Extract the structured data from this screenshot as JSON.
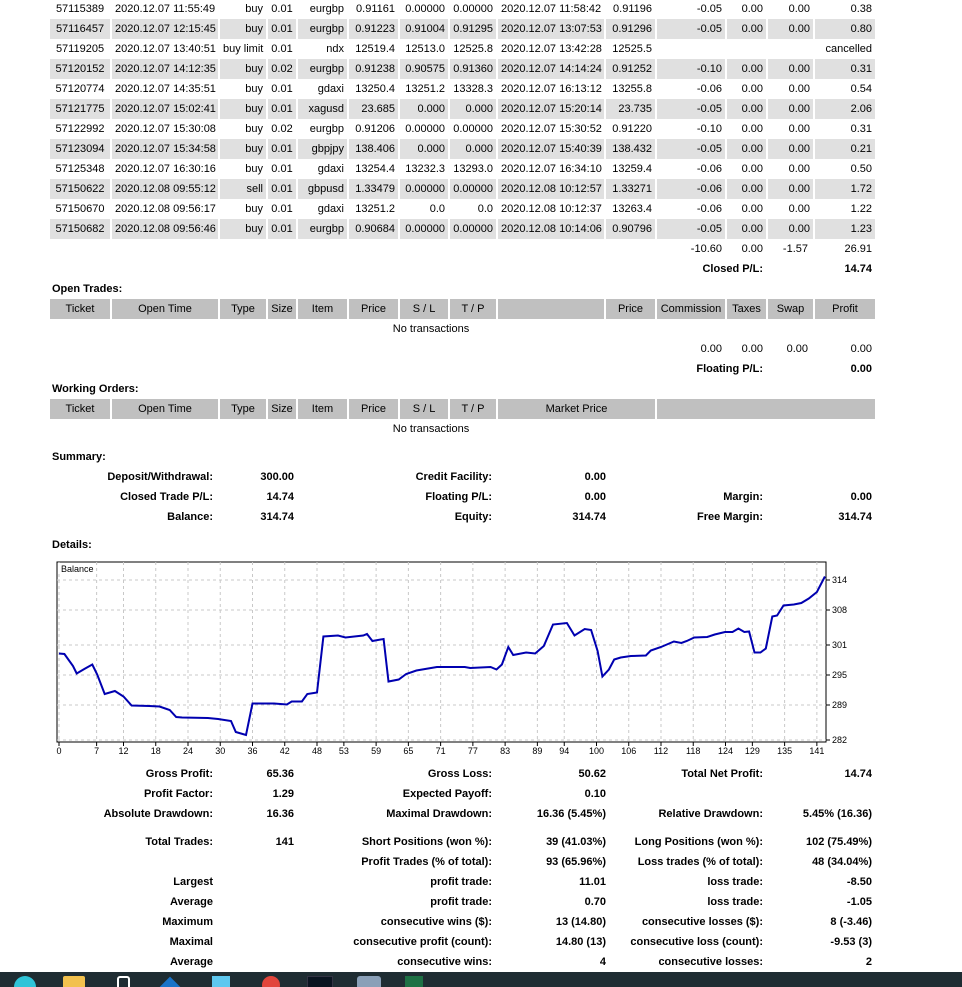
{
  "closed_trades": {
    "rows": [
      [
        "57115389",
        "2020.12.07 11:55:49",
        "buy",
        "0.01",
        "eurgbp",
        "0.91161",
        "0.00000",
        "0.00000",
        "2020.12.07 11:58:42",
        "0.91196",
        "-0.05",
        "0.00",
        "0.00",
        "0.38"
      ],
      [
        "57116457",
        "2020.12.07 12:15:45",
        "buy",
        "0.01",
        "eurgbp",
        "0.91223",
        "0.91004",
        "0.91295",
        "2020.12.07 13:07:53",
        "0.91296",
        "-0.05",
        "0.00",
        "0.00",
        "0.80"
      ],
      [
        "57119205",
        "2020.12.07 13:40:51",
        "buy limit",
        "0.01",
        "ndx",
        "12519.4",
        "12513.0",
        "12525.8",
        "2020.12.07 13:42:28",
        "12525.5",
        "",
        "",
        "",
        "cancelled"
      ],
      [
        "57120152",
        "2020.12.07 14:12:35",
        "buy",
        "0.02",
        "eurgbp",
        "0.91238",
        "0.90575",
        "0.91360",
        "2020.12.07 14:14:24",
        "0.91252",
        "-0.10",
        "0.00",
        "0.00",
        "0.31"
      ],
      [
        "57120774",
        "2020.12.07 14:35:51",
        "buy",
        "0.01",
        "gdaxi",
        "13250.4",
        "13251.2",
        "13328.3",
        "2020.12.07 16:13:12",
        "13255.8",
        "-0.06",
        "0.00",
        "0.00",
        "0.54"
      ],
      [
        "57121775",
        "2020.12.07 15:02:41",
        "buy",
        "0.01",
        "xagusd",
        "23.685",
        "0.000",
        "0.000",
        "2020.12.07 15:20:14",
        "23.735",
        "-0.05",
        "0.00",
        "0.00",
        "2.06"
      ],
      [
        "57122992",
        "2020.12.07 15:30:08",
        "buy",
        "0.02",
        "eurgbp",
        "0.91206",
        "0.00000",
        "0.00000",
        "2020.12.07 15:30:52",
        "0.91220",
        "-0.10",
        "0.00",
        "0.00",
        "0.31"
      ],
      [
        "57123094",
        "2020.12.07 15:34:58",
        "buy",
        "0.01",
        "gbpjpy",
        "138.406",
        "0.000",
        "0.000",
        "2020.12.07 15:40:39",
        "138.432",
        "-0.05",
        "0.00",
        "0.00",
        "0.21"
      ],
      [
        "57125348",
        "2020.12.07 16:30:16",
        "buy",
        "0.01",
        "gdaxi",
        "13254.4",
        "13232.3",
        "13293.0",
        "2020.12.07 16:34:10",
        "13259.4",
        "-0.06",
        "0.00",
        "0.00",
        "0.50"
      ],
      [
        "57150622",
        "2020.12.08 09:55:12",
        "sell",
        "0.01",
        "gbpusd",
        "1.33479",
        "0.00000",
        "0.00000",
        "2020.12.08 10:12:57",
        "1.33271",
        "-0.06",
        "0.00",
        "0.00",
        "1.72"
      ],
      [
        "57150670",
        "2020.12.08 09:56:17",
        "buy",
        "0.01",
        "gdaxi",
        "13251.2",
        "0.0",
        "0.0",
        "2020.12.08 10:12:37",
        "13263.4",
        "-0.06",
        "0.00",
        "0.00",
        "1.22"
      ],
      [
        "57150682",
        "2020.12.08 09:56:46",
        "buy",
        "0.01",
        "eurgbp",
        "0.90684",
        "0.00000",
        "0.00000",
        "2020.12.08 10:14:06",
        "0.90796",
        "-0.05",
        "0.00",
        "0.00",
        "1.23"
      ]
    ],
    "totals": {
      "commission": "-10.60",
      "taxes": "0.00",
      "swap": "-1.57",
      "profit": "26.91"
    },
    "closed_pl_label": "Closed P/L:",
    "closed_pl_value": "14.74"
  },
  "open_trades": {
    "title": "Open Trades:",
    "headers": [
      "Ticket",
      "Open Time",
      "Type",
      "Size",
      "Item",
      "Price",
      "S / L",
      "T / P",
      "",
      "Price",
      "Commission",
      "Taxes",
      "Swap",
      "Profit"
    ],
    "empty_text": "No transactions",
    "totals": {
      "commission": "0.00",
      "taxes": "0.00",
      "swap": "0.00",
      "profit": "0.00"
    },
    "floating_pl_label": "Floating P/L:",
    "floating_pl_value": "0.00"
  },
  "working_orders": {
    "title": "Working Orders:",
    "headers": [
      "Ticket",
      "Open Time",
      "Type",
      "Size",
      "Item",
      "Price",
      "S / L",
      "T / P",
      "Market Price",
      ""
    ],
    "empty_text": "No transactions"
  },
  "summary": {
    "title": "Summary:",
    "rows": [
      [
        [
          "Deposit/Withdrawal:",
          "300.00"
        ],
        [
          "Credit Facility:",
          "0.00"
        ],
        [
          "",
          ""
        ]
      ],
      [
        [
          "Closed Trade P/L:",
          "14.74"
        ],
        [
          "Floating P/L:",
          "0.00"
        ],
        [
          "Margin:",
          "0.00"
        ]
      ],
      [
        [
          "Balance:",
          "314.74"
        ],
        [
          "Equity:",
          "314.74"
        ],
        [
          "Free Margin:",
          "314.74"
        ]
      ]
    ]
  },
  "details": {
    "title": "Details:",
    "stats": [
      [
        [
          "Gross Profit:",
          "65.36"
        ],
        [
          "Gross Loss:",
          "50.62"
        ],
        [
          "Total Net Profit:",
          "14.74"
        ]
      ],
      [
        [
          "Profit Factor:",
          "1.29"
        ],
        [
          "Expected Payoff:",
          "0.10"
        ],
        [
          "",
          ""
        ]
      ],
      [
        [
          "Absolute Drawdown:",
          "16.36"
        ],
        [
          "Maximal Drawdown:",
          "16.36 (5.45%)"
        ],
        [
          "Relative Drawdown:",
          "5.45% (16.36)"
        ]
      ],
      [
        [
          "Total Trades:",
          "141"
        ],
        [
          "Short Positions (won %):",
          "39 (41.03%)"
        ],
        [
          "Long Positions (won %):",
          "102 (75.49%)"
        ]
      ],
      [
        [
          "",
          ""
        ],
        [
          "Profit Trades (% of total):",
          "93 (65.96%)"
        ],
        [
          "Loss trades (% of total):",
          "48 (34.04%)"
        ]
      ],
      [
        [
          "Largest",
          ""
        ],
        [
          "profit trade:",
          "11.01"
        ],
        [
          "loss trade:",
          "-8.50"
        ]
      ],
      [
        [
          "Average",
          ""
        ],
        [
          "profit trade:",
          "0.70"
        ],
        [
          "loss trade:",
          "-1.05"
        ]
      ],
      [
        [
          "Maximum",
          ""
        ],
        [
          "consecutive wins ($):",
          "13 (14.80)"
        ],
        [
          "consecutive losses ($):",
          "8 (-3.46)"
        ]
      ],
      [
        [
          "Maximal",
          ""
        ],
        [
          "consecutive profit (count):",
          "14.80 (13)"
        ],
        [
          "consecutive loss (count):",
          "-9.53 (3)"
        ]
      ],
      [
        [
          "Average",
          ""
        ],
        [
          "consecutive wins:",
          "4"
        ],
        [
          "consecutive losses:",
          "2"
        ]
      ]
    ]
  },
  "chart_data": {
    "type": "line",
    "title": "Balance",
    "line_color": "#0000b0",
    "grid": true,
    "xlim": [
      0,
      142.7
    ],
    "ylim": [
      281.6,
      317.6
    ],
    "x_ticks": [
      0,
      7,
      12,
      18,
      24,
      30,
      36,
      42,
      48,
      53,
      59,
      65,
      71,
      77,
      83,
      89,
      94,
      100,
      106,
      112,
      118,
      124,
      129,
      135,
      141
    ],
    "y_ticks": [
      314,
      308,
      301,
      295,
      289,
      282
    ],
    "series": [
      {
        "x": [
          0,
          1,
          2.6,
          3.3,
          4.7,
          6.2,
          7.1,
          8.5,
          10.4,
          12,
          13.5,
          16.8,
          18.7,
          20.6,
          21.8,
          22.9,
          27.7,
          29.6,
          32,
          32.9,
          34.8,
          36,
          40,
          42.4,
          43.3,
          45.2,
          46.2,
          48,
          49.2,
          51.9,
          53.3,
          56.6,
          57.3,
          58.3,
          60.4,
          61.3,
          63.2,
          64.6,
          66.5,
          70.3,
          75.5,
          76.5,
          80.3,
          81.4,
          82.4,
          83.6,
          84.5,
          86.9,
          88.6,
          90.2,
          91.9,
          94.5,
          95.9,
          97.8,
          99,
          100.2,
          101.1,
          102.3,
          103.3,
          104.5,
          106.4,
          109.2,
          110.1,
          112,
          114.4,
          115.8,
          116.8,
          118.2,
          120.6,
          122,
          123.9,
          125.3,
          126.4,
          127.5,
          128.4,
          129.4,
          130.5,
          131.5,
          132.7,
          133.6,
          134.8,
          136.7,
          138.1,
          139.5,
          141,
          142.5
        ],
        "y": [
          299.3,
          299.2,
          296.8,
          295.3,
          296.2,
          297.1,
          295.1,
          291.2,
          291.8,
          290.7,
          288.9,
          288.8,
          288.7,
          288.0,
          286.6,
          286.5,
          286.4,
          286.2,
          285.8,
          283.6,
          283.0,
          289.3,
          289.3,
          289.1,
          289.7,
          289.7,
          291.2,
          291.5,
          302.7,
          302.9,
          302.5,
          302.9,
          303.2,
          301.8,
          302.2,
          293.7,
          294.1,
          295.2,
          295.9,
          296.6,
          296.6,
          296.4,
          296.6,
          296.1,
          297.1,
          300.6,
          299.0,
          299.5,
          299.3,
          300.8,
          305.1,
          305.4,
          302.9,
          304.2,
          304.0,
          299.8,
          294.7,
          296.1,
          298.1,
          298.5,
          298.8,
          298.9,
          299.9,
          300.6,
          301.7,
          301.4,
          301.8,
          302.5,
          302.6,
          303.1,
          303.6,
          303.6,
          304.3,
          303.6,
          303.7,
          299.5,
          299.5,
          300.3,
          306.7,
          306.9,
          308.9,
          309.1,
          309.4,
          310.3,
          311.6,
          314.7
        ]
      }
    ]
  },
  "taskbar": {
    "icons": [
      "edge-icon",
      "file-explorer-icon",
      "phone-icon",
      "dropbox-icon",
      "window-app-icon",
      "chrome-icon",
      "terminal-app-icon",
      "metatrader-icon",
      "excel-icon"
    ],
    "colors": {
      "background": "#1f2d33"
    }
  }
}
